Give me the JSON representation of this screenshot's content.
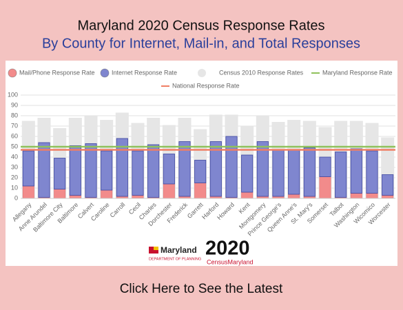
{
  "heading": {
    "title": "Maryland 2020 Census Response Rates",
    "subtitle": "By County for Internet, Mail-in, and Total Responses"
  },
  "chart_data": {
    "type": "bar",
    "categories": [
      "Allegany",
      "Anne Arundel",
      "Baltimore City",
      "Baltimore",
      "Calvert",
      "Caroline",
      "Carroll",
      "Cecil",
      "Charles",
      "Dorchester",
      "Frederick",
      "Garrett",
      "Harford",
      "Howard",
      "Kent",
      "Montgomery",
      "Prince George's",
      "Queen Anne's",
      "St. Mary's",
      "Somerset",
      "Talbot",
      "Washington",
      "Wicomico",
      "Worcester"
    ],
    "series": [
      {
        "name": "Mail/Phone Response Rate",
        "color": "#f28b8b",
        "values": [
          12,
          1,
          9,
          3,
          1,
          8,
          2,
          3,
          1,
          14,
          2,
          15,
          2,
          1,
          6,
          2,
          2,
          4,
          2,
          21,
          1,
          5,
          5,
          3
        ]
      },
      {
        "name": "Internet Response Rate",
        "color": "#7f86cf",
        "values": [
          34,
          53,
          30,
          48,
          52,
          38,
          56,
          43,
          51,
          29,
          53,
          22,
          53,
          59,
          36,
          53,
          45,
          43,
          47,
          19,
          44,
          43,
          41,
          20
        ]
      },
      {
        "name": "Census 2010 Response Rates",
        "color": "#e6e6e6",
        "values": [
          75,
          78,
          68,
          78,
          80,
          76,
          83,
          73,
          78,
          71,
          78,
          67,
          81,
          81,
          70,
          80,
          74,
          76,
          75,
          69,
          75,
          75,
          73,
          59
        ]
      }
    ],
    "reference_lines": [
      {
        "name": "Maryland Response Rate",
        "color": "#8fc15a",
        "value": 50
      },
      {
        "name": "National Response Rate",
        "color": "#f07e64",
        "value": 47
      }
    ],
    "ylim": [
      0,
      100
    ],
    "yticks": [
      0,
      10,
      20,
      30,
      40,
      50,
      60,
      70,
      80,
      90,
      100
    ],
    "grid": true
  },
  "logos": {
    "agency": "Maryland",
    "agency_sub": "DEPARTMENT OF PLANNING",
    "census_year": "2020",
    "census_name": "CensusMaryland"
  },
  "button": "Click Here to See the Latest"
}
